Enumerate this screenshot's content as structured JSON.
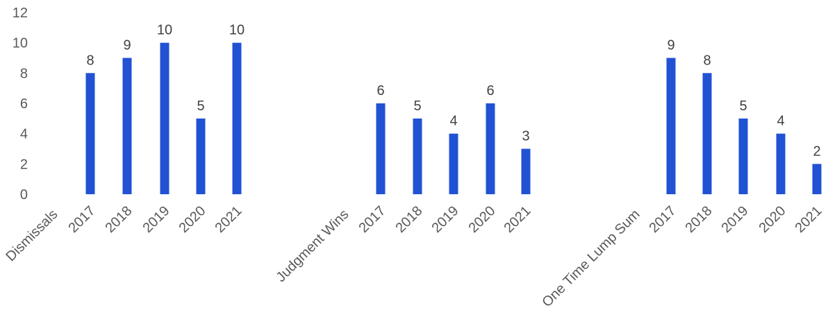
{
  "chart_data": {
    "type": "bar",
    "title": "",
    "ylabel": "",
    "ylim": [
      0,
      12
    ],
    "yticks": [
      0,
      2,
      4,
      6,
      8,
      10,
      12
    ],
    "grid": false,
    "legend": "none",
    "bar_color": "#2152D4",
    "groups": [
      {
        "name": "Dismissals",
        "categories": [
          "2017",
          "2018",
          "2019",
          "2020",
          "2021"
        ],
        "values": [
          8,
          9,
          10,
          5,
          10
        ]
      },
      {
        "name": "Judgment Wins",
        "categories": [
          "2017",
          "2018",
          "2019",
          "2020",
          "2021"
        ],
        "values": [
          6,
          5,
          4,
          6,
          3
        ]
      },
      {
        "name": "One Time Lump Sum",
        "categories": [
          "2017",
          "2018",
          "2019",
          "2020",
          "2021"
        ],
        "values": [
          9,
          8,
          5,
          4,
          2
        ]
      }
    ]
  }
}
